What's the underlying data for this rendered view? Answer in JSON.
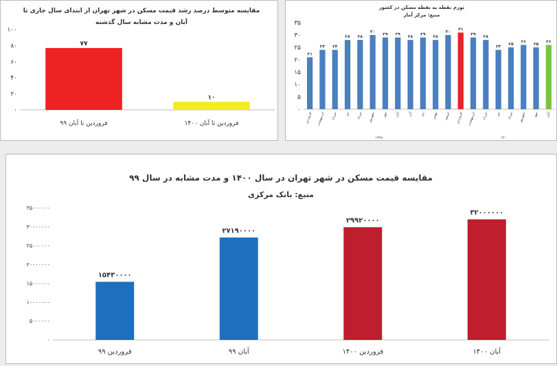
{
  "charts": {
    "growth": {
      "type": "bar",
      "title_line1": "مقایسه متوسط درصد رشد قیمت مسکن در شهر تهران از ابتدای سال جاری تا",
      "title_line2": "آبان و مدت مشابه سال گذشته",
      "categories": [
        "فروردین تا آبان ۹۹",
        "فروردین تا آبان ۱۴۰۰"
      ],
      "values": [
        77,
        10
      ],
      "value_labels": [
        "۷۷",
        "۱۰"
      ],
      "colors": [
        "#ee2124",
        "#f2ec1c"
      ],
      "ylim": [
        0,
        100
      ],
      "yticks": [
        0,
        20,
        40,
        60,
        80,
        100
      ],
      "ytick_labels": [
        "۰",
        "۲۰",
        "۴۰",
        "۶۰",
        "۸۰",
        "۱۰۰"
      ]
    },
    "inflation": {
      "type": "bar",
      "title_line1": "تورم نقطه به نقطه مسکن در کشور",
      "title_line2": "منبع: مرکز آمار",
      "values": [
        21,
        24,
        24,
        28,
        28,
        30,
        29,
        29,
        28,
        29,
        28,
        30,
        31,
        29,
        28,
        24,
        25,
        26,
        25,
        26
      ],
      "value_labels": [
        "۲۱",
        "۲۴",
        "۲۴",
        "۲۸",
        "۲۸",
        "۳۰",
        "۲۹",
        "۲۹",
        "۲۸",
        "۲۹",
        "۲۸",
        "۳۰",
        "۳۱",
        "۲۹",
        "۲۸",
        "۲۴",
        "۲۵",
        "۲۶",
        "۲۵",
        "۲۶"
      ],
      "colors": [
        "#4a7fc0",
        "#4a7fc0",
        "#4a7fc0",
        "#4a7fc0",
        "#4a7fc0",
        "#4a7fc0",
        "#4a7fc0",
        "#4a7fc0",
        "#4a7fc0",
        "#4a7fc0",
        "#4a7fc0",
        "#4a7fc0",
        "#e8232a",
        "#4a7fc0",
        "#4a7fc0",
        "#4a7fc0",
        "#4a7fc0",
        "#4a7fc0",
        "#4a7fc0",
        "#7cc242"
      ],
      "categories": [
        "فروردین",
        "اردیبهشت",
        "خرداد",
        "تیر",
        "مرداد",
        "شهریور",
        "مهر",
        "آبان",
        "آذر",
        "دی",
        "بهمن",
        "اسفند",
        "فروردین",
        "اردیبهشت",
        "خرداد",
        "تیر",
        "مرداد",
        "شهریور",
        "مهر",
        "آبان"
      ],
      "group_labels": [
        "۱۳۹۹",
        "۱۴۰۰"
      ],
      "ylim": [
        0,
        35
      ],
      "yticks": [
        0,
        5,
        10,
        15,
        20,
        25,
        30,
        35
      ],
      "ytick_labels": [
        "۰",
        "۵",
        "۱۰",
        "۱۵",
        "۲۰",
        "۲۵",
        "۳۰",
        "۳۵"
      ]
    },
    "price": {
      "type": "bar",
      "title_line1": "مقایسه قیمت مسکن در شهر تهران در سال ۱۴۰۰ و مدت مشابه در سال ۹۹",
      "title_line2": "منبع: بانک مرکزی",
      "categories": [
        "فروردین ۹۹",
        "آبان ۹۹",
        "فروردین ۱۴۰۰",
        "آبان ۱۴۰۰"
      ],
      "values": [
        15430000,
        27190000,
        29920000,
        32000000
      ],
      "value_labels": [
        "۱۵۴۳۰۰۰۰",
        "۲۷۱۹۰۰۰۰",
        "۲۹۹۲۰۰۰۰",
        "۳۲۰۰۰۰۰۰"
      ],
      "colors": [
        "#1f6fbf",
        "#1f6fbf",
        "#be1e2d",
        "#be1e2d"
      ],
      "ylim": [
        0,
        35000000
      ],
      "yticks": [
        0,
        5000000,
        10000000,
        15000000,
        20000000,
        25000000,
        30000000,
        35000000
      ],
      "ytick_labels": [
        "۰",
        "۵۰۰۰۰۰۰",
        "۱۰۰۰۰۰۰۰",
        "۱۵۰۰۰۰۰۰",
        "۲۰۰۰۰۰۰۰",
        "۲۵۰۰۰۰۰۰",
        "۳۰۰۰۰۰۰۰",
        "۳۵۰۰۰۰۰۰"
      ]
    }
  },
  "chart_data": [
    {
      "type": "bar",
      "title": "مقایسه متوسط درصد رشد قیمت مسکن در شهر تهران از ابتدای سال جاری تا آبان و مدت مشابه سال گذشته",
      "categories": [
        "فروردین تا آبان ۹۹",
        "فروردین تا آبان ۱۴۰۰"
      ],
      "values": [
        77,
        10
      ],
      "ylim": [
        0,
        100
      ]
    },
    {
      "type": "bar",
      "title": "تورم نقطه به نقطه مسکن در کشور",
      "x": [
        "۱۳۹۹ فروردین",
        "۱۳۹۹ اردیبهشت",
        "۱۳۹۹ خرداد",
        "۱۳۹۹ تیر",
        "۱۳۹۹ مرداد",
        "۱۳۹۹ شهریور",
        "۱۳۹۹ مهر",
        "۱۳۹۹ آبان",
        "۱۳۹۹ آذر",
        "۱۳۹۹ دی",
        "۱۳۹۹ بهمن",
        "۱۳۹۹ اسفند",
        "۱۴۰۰ فروردین",
        "۱۴۰۰ اردیبهشت",
        "۱۴۰۰ خرداد",
        "۱۴۰۰ تیر",
        "۱۴۰۰ مرداد",
        "۱۴۰۰ شهریور",
        "۱۴۰۰ مهر",
        "۱۴۰۰ آبان"
      ],
      "values": [
        21,
        24,
        24,
        28,
        28,
        30,
        29,
        29,
        28,
        29,
        28,
        30,
        31,
        29,
        28,
        24,
        25,
        26,
        25,
        26
      ],
      "ylim": [
        0,
        35
      ]
    },
    {
      "type": "bar",
      "title": "مقایسه قیمت مسکن در شهر تهران در سال ۱۴۰۰ و مدت مشابه در سال ۹۹",
      "categories": [
        "فروردین ۹۹",
        "آبان ۹۹",
        "فروردین ۱۴۰۰",
        "آبان ۱۴۰۰"
      ],
      "values": [
        15430000,
        27190000,
        29920000,
        32000000
      ],
      "ylim": [
        0,
        35000000
      ]
    }
  ]
}
